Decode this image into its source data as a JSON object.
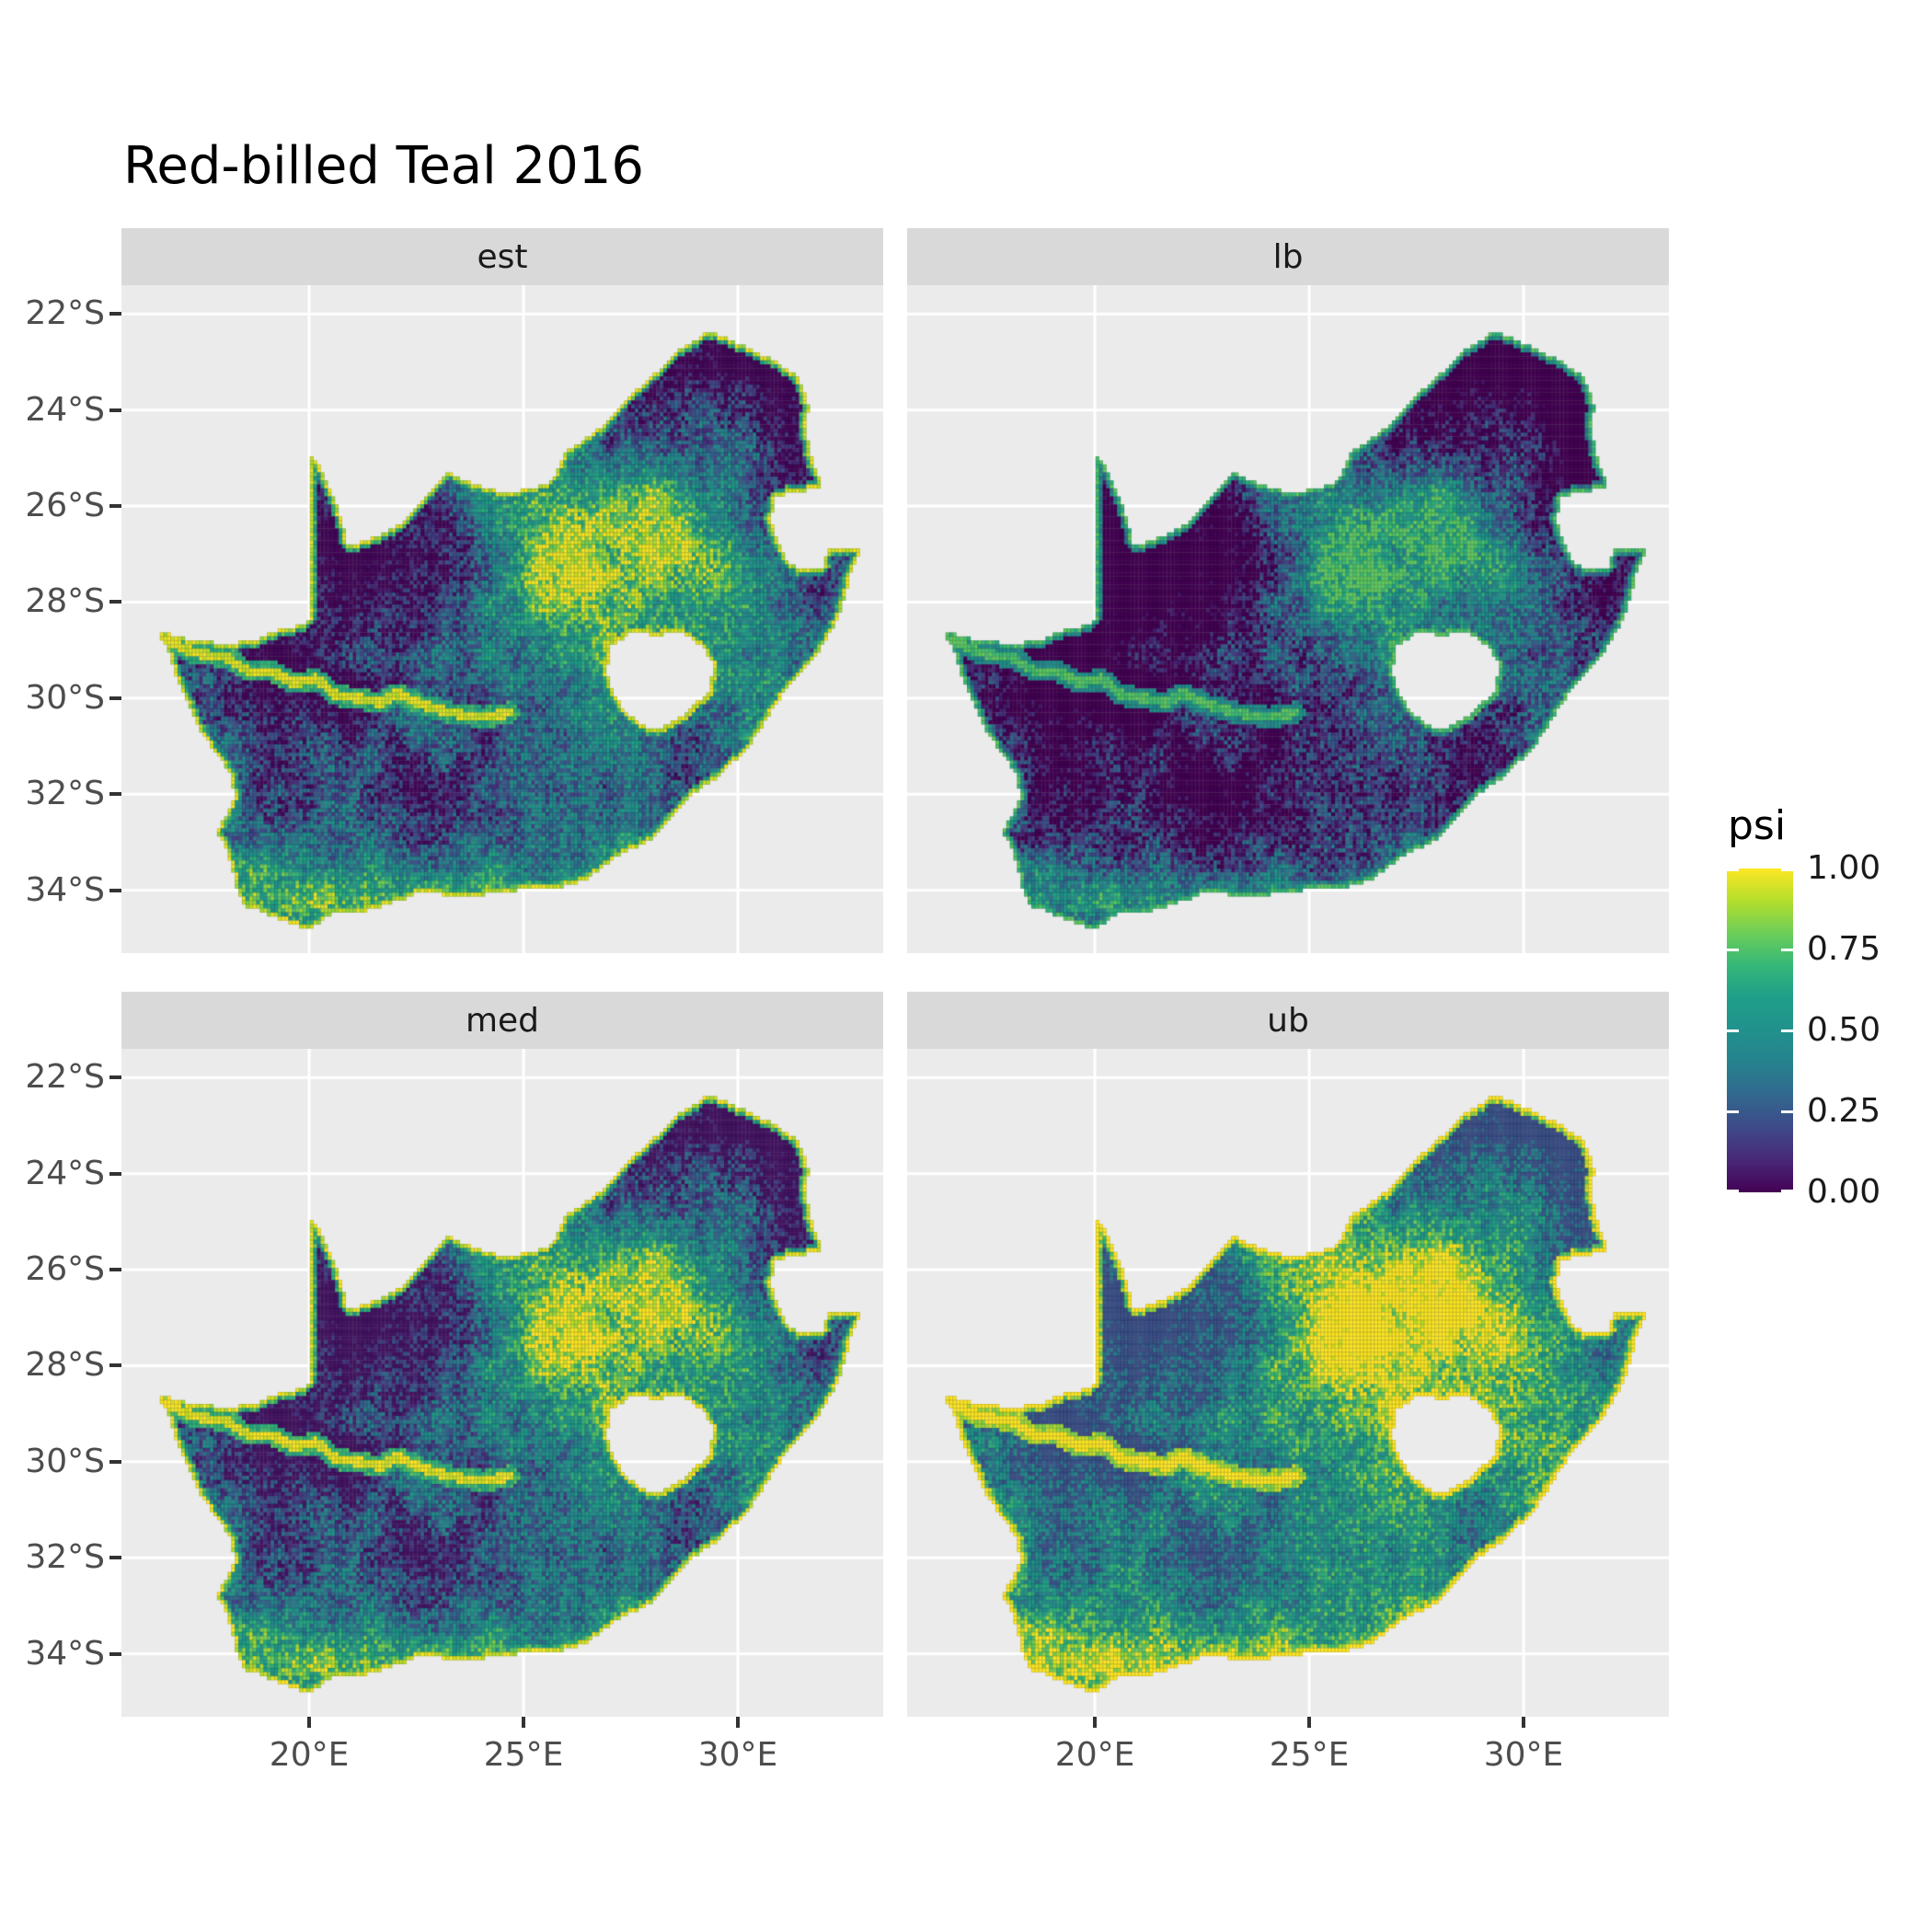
{
  "title": "Red-billed Teal 2016",
  "colors": {
    "panel_bg": "#EBEBEB",
    "strip_bg": "#D9D9D9",
    "grid_line": "#FFFFFF",
    "axis_text": "#4D4D4D",
    "tick_mark": "#333333",
    "text": "#000000"
  },
  "chart_data": {
    "type": "heatmap",
    "subtype": "faceted raster occupancy map of South Africa",
    "title": "Red-billed Teal 2016",
    "facets": [
      "est",
      "lb",
      "med",
      "ub"
    ],
    "facet_value_offsets": {
      "est": 0.0,
      "lb": -0.2,
      "med": 0.02,
      "ub": 0.2
    },
    "variable": "psi",
    "value_range": [
      0,
      1
    ],
    "x": {
      "tick_values": [
        20,
        25,
        30
      ],
      "tick_labels": [
        "20°E",
        "25°E",
        "30°E"
      ],
      "range": [
        15.62,
        33.39
      ]
    },
    "y": {
      "tick_values": [
        -22,
        -24,
        -26,
        -28,
        -30,
        -32,
        -34
      ],
      "tick_labels": [
        "22°S",
        "24°S",
        "26°S",
        "28°S",
        "30°S",
        "32°S",
        "34°S"
      ],
      "range": [
        -21.4,
        -35.31
      ]
    },
    "legend": {
      "title": "psi",
      "tick_values": [
        1.0,
        0.75,
        0.5,
        0.25,
        0.0
      ],
      "tick_labels": [
        "1.00",
        "0.75",
        "0.50",
        "0.25",
        "0.00"
      ],
      "position": "right"
    },
    "colormap": {
      "name": "viridis",
      "stops": [
        [
          0.0,
          "#440154"
        ],
        [
          0.1,
          "#482878"
        ],
        [
          0.2,
          "#3E4A89"
        ],
        [
          0.3,
          "#31688E"
        ],
        [
          0.4,
          "#26828E"
        ],
        [
          0.5,
          "#21918C"
        ],
        [
          0.6,
          "#1F9E89"
        ],
        [
          0.7,
          "#35B779"
        ],
        [
          0.8,
          "#6CCE59"
        ],
        [
          0.9,
          "#B4DE2C"
        ],
        [
          1.0,
          "#FDE725"
        ]
      ]
    },
    "map": {
      "grid": {
        "cell_deg": 0.0833,
        "lon_min": 16.35,
        "lat_max": -22.05,
        "cols": 201,
        "rows": 155
      },
      "base": 0.35,
      "outline": [
        [
          16.45,
          -28.6
        ],
        [
          17.2,
          -28.78
        ],
        [
          17.95,
          -28.86
        ],
        [
          18.65,
          -28.82
        ],
        [
          19.15,
          -28.62
        ],
        [
          19.7,
          -28.5
        ],
        [
          20.0,
          -28.4
        ],
        [
          20.0,
          -24.9
        ],
        [
          20.2,
          -25.1
        ],
        [
          20.45,
          -25.55
        ],
        [
          20.7,
          -26.1
        ],
        [
          20.9,
          -26.85
        ],
        [
          21.7,
          -26.6
        ],
        [
          22.2,
          -26.35
        ],
        [
          22.65,
          -25.85
        ],
        [
          23.2,
          -25.3
        ],
        [
          23.75,
          -25.5
        ],
        [
          24.55,
          -25.75
        ],
        [
          25.35,
          -25.6
        ],
        [
          25.7,
          -25.45
        ],
        [
          25.95,
          -24.9
        ],
        [
          26.45,
          -24.6
        ],
        [
          26.9,
          -24.3
        ],
        [
          27.35,
          -23.8
        ],
        [
          27.95,
          -23.35
        ],
        [
          28.6,
          -22.75
        ],
        [
          29.35,
          -22.35
        ],
        [
          30.2,
          -22.7
        ],
        [
          30.8,
          -22.95
        ],
        [
          31.4,
          -23.3
        ],
        [
          31.65,
          -23.9
        ],
        [
          31.6,
          -24.5
        ],
        [
          31.75,
          -25.1
        ],
        [
          31.97,
          -25.6
        ],
        [
          31.3,
          -25.72
        ],
        [
          30.85,
          -25.82
        ],
        [
          30.78,
          -26.3
        ],
        [
          30.95,
          -26.8
        ],
        [
          31.15,
          -27.2
        ],
        [
          31.5,
          -27.32
        ],
        [
          31.97,
          -27.33
        ],
        [
          32.12,
          -26.86
        ],
        [
          32.89,
          -26.86
        ],
        [
          32.6,
          -27.5
        ],
        [
          32.42,
          -28.18
        ],
        [
          32.05,
          -28.8
        ],
        [
          31.7,
          -29.25
        ],
        [
          31.05,
          -29.9
        ],
        [
          30.3,
          -30.95
        ],
        [
          29.6,
          -31.6
        ],
        [
          28.8,
          -32.1
        ],
        [
          28.0,
          -32.95
        ],
        [
          27.15,
          -33.3
        ],
        [
          26.45,
          -33.78
        ],
        [
          25.65,
          -34.0
        ],
        [
          24.85,
          -34.0
        ],
        [
          24.0,
          -34.1
        ],
        [
          23.3,
          -34.1
        ],
        [
          22.55,
          -34.05
        ],
        [
          22.15,
          -34.2
        ],
        [
          21.25,
          -34.45
        ],
        [
          20.55,
          -34.48
        ],
        [
          20.0,
          -34.82
        ],
        [
          19.3,
          -34.62
        ],
        [
          18.8,
          -34.38
        ],
        [
          18.45,
          -34.33
        ],
        [
          18.3,
          -33.9
        ],
        [
          18.1,
          -33.2
        ],
        [
          17.85,
          -32.8
        ],
        [
          18.25,
          -32.1
        ],
        [
          18.2,
          -31.6
        ],
        [
          17.5,
          -30.75
        ],
        [
          17.0,
          -29.8
        ],
        [
          16.7,
          -29.0
        ]
      ],
      "lesotho_hole": [
        [
          26.95,
          -29.35
        ],
        [
          27.05,
          -28.9
        ],
        [
          27.55,
          -28.62
        ],
        [
          28.15,
          -28.7
        ],
        [
          28.65,
          -28.6
        ],
        [
          29.15,
          -28.9
        ],
        [
          29.45,
          -29.35
        ],
        [
          29.3,
          -29.85
        ],
        [
          28.85,
          -30.28
        ],
        [
          28.15,
          -30.65
        ],
        [
          27.7,
          -30.55
        ],
        [
          27.32,
          -30.2
        ],
        [
          27.0,
          -29.75
        ]
      ],
      "river": [
        [
          16.55,
          -28.75
        ],
        [
          17.3,
          -29.05
        ],
        [
          18.05,
          -29.15
        ],
        [
          18.6,
          -29.45
        ],
        [
          19.15,
          -29.45
        ],
        [
          19.65,
          -29.7
        ],
        [
          20.15,
          -29.6
        ],
        [
          20.65,
          -29.95
        ],
        [
          21.15,
          -30.0
        ],
        [
          21.65,
          -30.1
        ],
        [
          22.05,
          -29.9
        ],
        [
          22.55,
          -30.1
        ],
        [
          23.05,
          -30.25
        ],
        [
          23.55,
          -30.35
        ],
        [
          24.1,
          -30.4
        ],
        [
          24.7,
          -30.3
        ]
      ],
      "blobs": [
        [
          21.8,
          -26.9,
          2.0,
          1.5,
          -0.45
        ],
        [
          19.3,
          -29.5,
          1.7,
          0.8,
          -0.33
        ],
        [
          29.6,
          -22.8,
          2.0,
          0.75,
          -0.38
        ],
        [
          31.35,
          -24.2,
          0.85,
          1.2,
          -0.32
        ],
        [
          28.0,
          -24.2,
          1.3,
          0.75,
          -0.18
        ],
        [
          27.2,
          -26.7,
          2.0,
          1.4,
          0.45
        ],
        [
          25.9,
          -28.2,
          1.5,
          1.1,
          0.24
        ],
        [
          28.15,
          -26.15,
          0.8,
          0.6,
          0.25
        ],
        [
          23.5,
          -34.05,
          2.6,
          0.5,
          0.3
        ],
        [
          19.9,
          -34.35,
          1.2,
          0.45,
          0.3
        ],
        [
          17.95,
          -32.2,
          0.55,
          1.2,
          0.15
        ],
        [
          21.8,
          -31.9,
          2.2,
          1.0,
          -0.12
        ],
        [
          26.8,
          -32.3,
          1.6,
          1.0,
          0.12
        ],
        [
          30.9,
          -29.6,
          0.9,
          0.9,
          0.12
        ],
        [
          29.0,
          -30.9,
          0.8,
          0.8,
          -0.15
        ],
        [
          31.05,
          -26.6,
          0.6,
          1.0,
          -0.22
        ]
      ]
    }
  }
}
